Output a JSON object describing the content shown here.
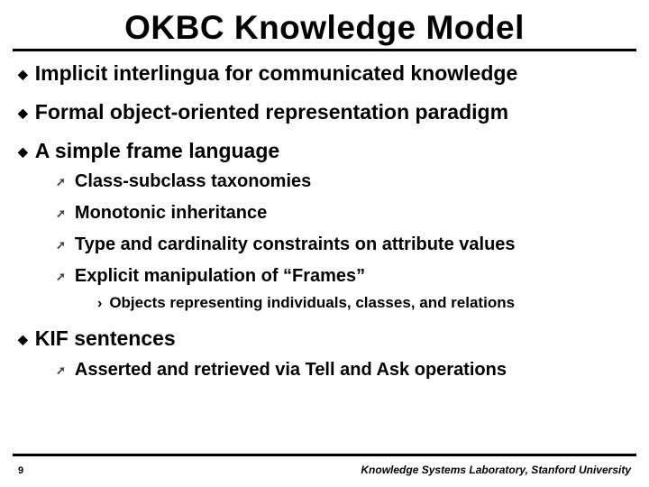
{
  "title": "OKBC Knowledge Model",
  "bullets": {
    "b0": "Implicit interlingua for communicated knowledge",
    "b1": "Formal object-oriented representation paradigm",
    "b2": "A simple frame language",
    "b2_sub": {
      "s0": "Class-subclass taxonomies",
      "s1": "Monotonic inheritance",
      "s2": "Type and cardinality constraints on attribute values",
      "s3": "Explicit manipulation of “Frames”",
      "s3_sub": {
        "t0": "Objects representing individuals, classes, and relations"
      }
    },
    "b3": "KIF sentences",
    "b3_sub": {
      "s0": "Asserted and retrieved via Tell and Ask operations"
    }
  },
  "footer": {
    "slide_number": "9",
    "affiliation": "Knowledge Systems Laboratory, Stanford University"
  },
  "colors": {
    "text": "#000000",
    "background": "#ffffff",
    "rule": "#000000"
  },
  "typography": {
    "title_fontsize": 37,
    "l1_fontsize": 23,
    "l2_fontsize": 20,
    "l3_fontsize": 17,
    "footer_fontsize": 12,
    "font_family": "Arial",
    "weight": 700
  }
}
